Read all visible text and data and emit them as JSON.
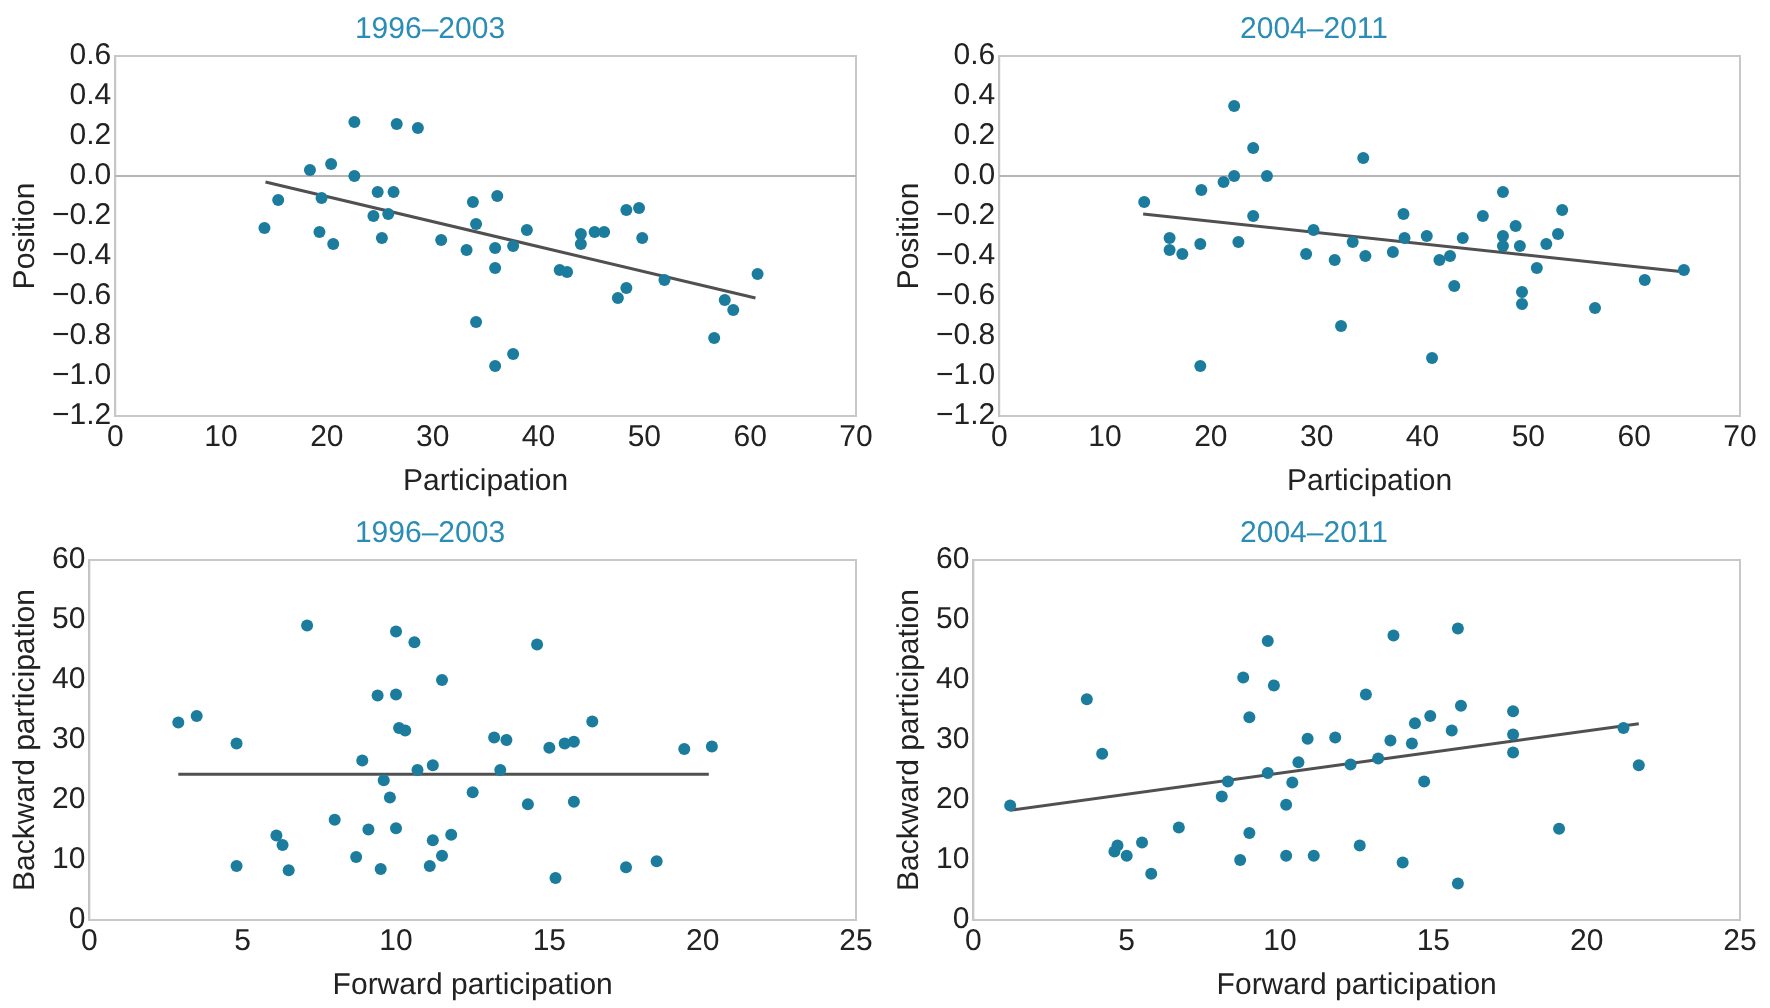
{
  "chart_data": [
    {
      "type": "scatter",
      "title": "1996–2003",
      "xlabel": "Participation",
      "ylabel": "Position",
      "xlim": [
        0,
        70
      ],
      "xticks": [
        0,
        10,
        20,
        30,
        40,
        50,
        60,
        70
      ],
      "ylim": [
        -1.2,
        0.6
      ],
      "yticks": [
        {
          "value": -1.2,
          "label": "−1.2"
        },
        {
          "value": -1.0,
          "label": "−1.0"
        },
        {
          "value": -0.8,
          "label": "−0.8"
        },
        {
          "value": -0.6,
          "label": "−0.6"
        },
        {
          "value": -0.4,
          "label": "−0.4"
        },
        {
          "value": -0.2,
          "label": "−0.2"
        },
        {
          "value": 0,
          "label": "0.0"
        },
        {
          "value": 0.2,
          "label": "0.2"
        },
        {
          "value": 0.4,
          "label": "0.4"
        },
        {
          "value": 0.6,
          "label": "0.6"
        }
      ],
      "grid": false,
      "legend": false,
      "marker": "circle",
      "ref_lines": [
        {
          "axis": "y",
          "value": 0,
          "color": "#b5b5b5"
        }
      ],
      "series": [
        {
          "color": "#1b7c9e",
          "x": [
            14.1,
            15.4,
            18.4,
            19.5,
            19.3,
            20.4,
            20.6,
            22.6,
            22.6,
            24.8,
            24.4,
            25.2,
            25.8,
            26.3,
            26.6,
            28.6,
            30.8,
            33.2,
            33.8,
            34.1,
            34.1,
            36.1,
            35.9,
            35.9,
            35.9,
            37.6,
            37.6,
            38.9,
            42.0,
            42.7,
            44.0,
            44.0,
            45.3,
            46.2,
            47.5,
            48.3,
            48.3,
            49.5,
            49.8,
            51.9,
            56.6,
            57.6,
            58.4,
            60.7
          ],
          "values": [
            -0.26,
            -0.12,
            0.03,
            -0.11,
            -0.28,
            0.06,
            -0.34,
            0.27,
            0.0,
            -0.08,
            -0.2,
            -0.31,
            -0.19,
            -0.08,
            0.26,
            0.24,
            -0.32,
            -0.37,
            -0.13,
            -0.24,
            -0.73,
            -0.1,
            -0.36,
            -0.46,
            -0.95,
            -0.89,
            -0.35,
            -0.27,
            -0.47,
            -0.48,
            -0.29,
            -0.34,
            -0.28,
            -0.28,
            -0.61,
            -0.56,
            -0.17,
            -0.16,
            -0.31,
            -0.52,
            -0.81,
            -0.62,
            -0.67,
            -0.49
          ]
        },
        {
          "type": "line",
          "color": "#505050",
          "marker": "none",
          "x": [
            14.2,
            60.5
          ],
          "values": [
            -0.03,
            -0.61
          ]
        }
      ]
    },
    {
      "type": "scatter",
      "title": "2004–2011",
      "xlabel": "Participation",
      "ylabel": "Position",
      "xlim": [
        0,
        70
      ],
      "xticks": [
        0,
        10,
        20,
        30,
        40,
        50,
        60,
        70
      ],
      "ylim": [
        -1.2,
        0.6
      ],
      "yticks": [
        {
          "value": -1.2,
          "label": "−1.2"
        },
        {
          "value": -1.0,
          "label": "−1.0"
        },
        {
          "value": -0.8,
          "label": "−0.8"
        },
        {
          "value": -0.6,
          "label": "−0.6"
        },
        {
          "value": -0.4,
          "label": "−0.4"
        },
        {
          "value": -0.2,
          "label": "−0.2"
        },
        {
          "value": 0,
          "label": "0.0"
        },
        {
          "value": 0.2,
          "label": "0.2"
        },
        {
          "value": 0.4,
          "label": "0.4"
        },
        {
          "value": 0.6,
          "label": "0.6"
        }
      ],
      "grid": false,
      "legend": false,
      "marker": "circle",
      "ref_lines": [
        {
          "axis": "y",
          "value": 0,
          "color": "#b5b5b5"
        }
      ],
      "series": [
        {
          "color": "#1b7c9e",
          "x": [
            13.7,
            16.1,
            16.1,
            17.3,
            19.0,
            19.1,
            19.0,
            21.2,
            22.2,
            22.2,
            24.0,
            24.0,
            22.6,
            25.3,
            29.0,
            29.7,
            31.7,
            32.3,
            33.4,
            34.4,
            34.6,
            37.2,
            38.2,
            38.3,
            40.4,
            40.9,
            41.6,
            42.6,
            43.0,
            43.8,
            45.7,
            47.6,
            47.6,
            47.6,
            48.8,
            49.2,
            49.4,
            49.4,
            50.8,
            51.7,
            52.8,
            53.2,
            56.3,
            61.0,
            64.7
          ],
          "values": [
            -0.13,
            -0.31,
            -0.37,
            -0.39,
            -0.34,
            -0.07,
            -0.95,
            -0.03,
            0.0,
            0.35,
            0.14,
            -0.2,
            -0.33,
            0.0,
            -0.39,
            -0.27,
            -0.42,
            -0.75,
            -0.33,
            0.09,
            -0.4,
            -0.38,
            -0.19,
            -0.31,
            -0.3,
            -0.91,
            -0.42,
            -0.4,
            -0.55,
            -0.31,
            -0.2,
            -0.08,
            -0.3,
            -0.35,
            -0.25,
            -0.35,
            -0.58,
            -0.64,
            -0.46,
            -0.34,
            -0.29,
            -0.17,
            -0.66,
            -0.52,
            -0.47
          ]
        },
        {
          "type": "line",
          "color": "#505050",
          "marker": "none",
          "x": [
            13.6,
            64.8
          ],
          "values": [
            -0.19,
            -0.48
          ]
        }
      ]
    },
    {
      "type": "scatter",
      "title": "1996–2003",
      "xlabel": "Forward participation",
      "ylabel": "Backward participation",
      "xlim": [
        0,
        25
      ],
      "xticks": [
        0,
        5,
        10,
        15,
        20,
        25
      ],
      "ylim": [
        0,
        60
      ],
      "yticks": [
        0,
        10,
        20,
        30,
        40,
        50,
        60
      ],
      "grid": false,
      "legend": false,
      "marker": "circle",
      "series": [
        {
          "color": "#1b7c9e",
          "x": [
            2.9,
            3.5,
            4.8,
            4.8,
            7.1,
            6.1,
            6.3,
            6.5,
            8.0,
            8.7,
            8.9,
            9.1,
            9.4,
            9.5,
            9.6,
            9.8,
            10.0,
            10.0,
            10.0,
            10.1,
            10.3,
            10.6,
            10.7,
            11.1,
            11.2,
            11.2,
            11.5,
            11.5,
            11.8,
            12.5,
            13.2,
            13.6,
            13.4,
            14.3,
            14.6,
            15.0,
            15.2,
            15.5,
            15.8,
            15.8,
            16.4,
            17.5,
            18.5,
            19.4,
            20.3
          ],
          "values": [
            32.9,
            34.0,
            29.4,
            9.0,
            49.1,
            14.1,
            12.5,
            8.3,
            16.7,
            10.5,
            26.6,
            15.1,
            37.4,
            8.5,
            23.3,
            20.4,
            48.1,
            37.6,
            15.3,
            32.0,
            31.6,
            46.3,
            25.0,
            9.0,
            13.3,
            25.8,
            10.7,
            40.0,
            14.2,
            21.3,
            30.4,
            30.0,
            25.0,
            19.3,
            45.9,
            28.7,
            7.0,
            29.4,
            29.7,
            19.7,
            33.1,
            8.8,
            9.8,
            28.5,
            28.9
          ]
        },
        {
          "type": "line",
          "color": "#505050",
          "marker": "none",
          "x": [
            2.9,
            20.2
          ],
          "values": [
            24.3,
            24.3
          ]
        }
      ]
    },
    {
      "type": "scatter",
      "title": "2004–2011",
      "xlabel": "Forward participation",
      "ylabel": "Backward participation",
      "xlim": [
        0,
        25
      ],
      "xticks": [
        0,
        5,
        10,
        15,
        20,
        25
      ],
      "ylim": [
        0,
        60
      ],
      "yticks": [
        0,
        10,
        20,
        30,
        40,
        50,
        60
      ],
      "grid": false,
      "legend": false,
      "marker": "circle",
      "series": [
        {
          "color": "#1b7c9e",
          "x": [
            1.2,
            3.7,
            4.2,
            4.6,
            4.7,
            5.0,
            5.5,
            5.8,
            6.7,
            8.1,
            8.3,
            8.7,
            8.8,
            9.0,
            9.0,
            9.6,
            9.6,
            9.8,
            10.2,
            10.2,
            10.4,
            10.6,
            10.9,
            11.1,
            11.8,
            12.3,
            12.6,
            12.8,
            13.2,
            13.6,
            13.7,
            14.0,
            14.3,
            14.4,
            14.7,
            14.9,
            15.6,
            15.8,
            15.8,
            15.9,
            17.6,
            17.6,
            17.6,
            19.1,
            21.2,
            21.7
          ],
          "values": [
            19.1,
            36.8,
            27.7,
            11.4,
            12.4,
            10.7,
            12.9,
            7.7,
            15.4,
            20.6,
            23.1,
            10.0,
            40.4,
            33.8,
            14.5,
            46.5,
            24.5,
            39.1,
            19.2,
            10.7,
            22.9,
            26.3,
            30.2,
            10.7,
            30.4,
            25.9,
            12.4,
            37.6,
            26.9,
            29.9,
            47.4,
            9.6,
            29.4,
            32.8,
            23.1,
            34.0,
            31.6,
            48.6,
            6.1,
            35.7,
            34.8,
            30.9,
            27.9,
            15.2,
            32.0,
            25.8
          ]
        },
        {
          "type": "line",
          "color": "#505050",
          "marker": "none",
          "x": [
            1.2,
            21.7
          ],
          "values": [
            18.3,
            32.7
          ]
        }
      ]
    }
  ]
}
